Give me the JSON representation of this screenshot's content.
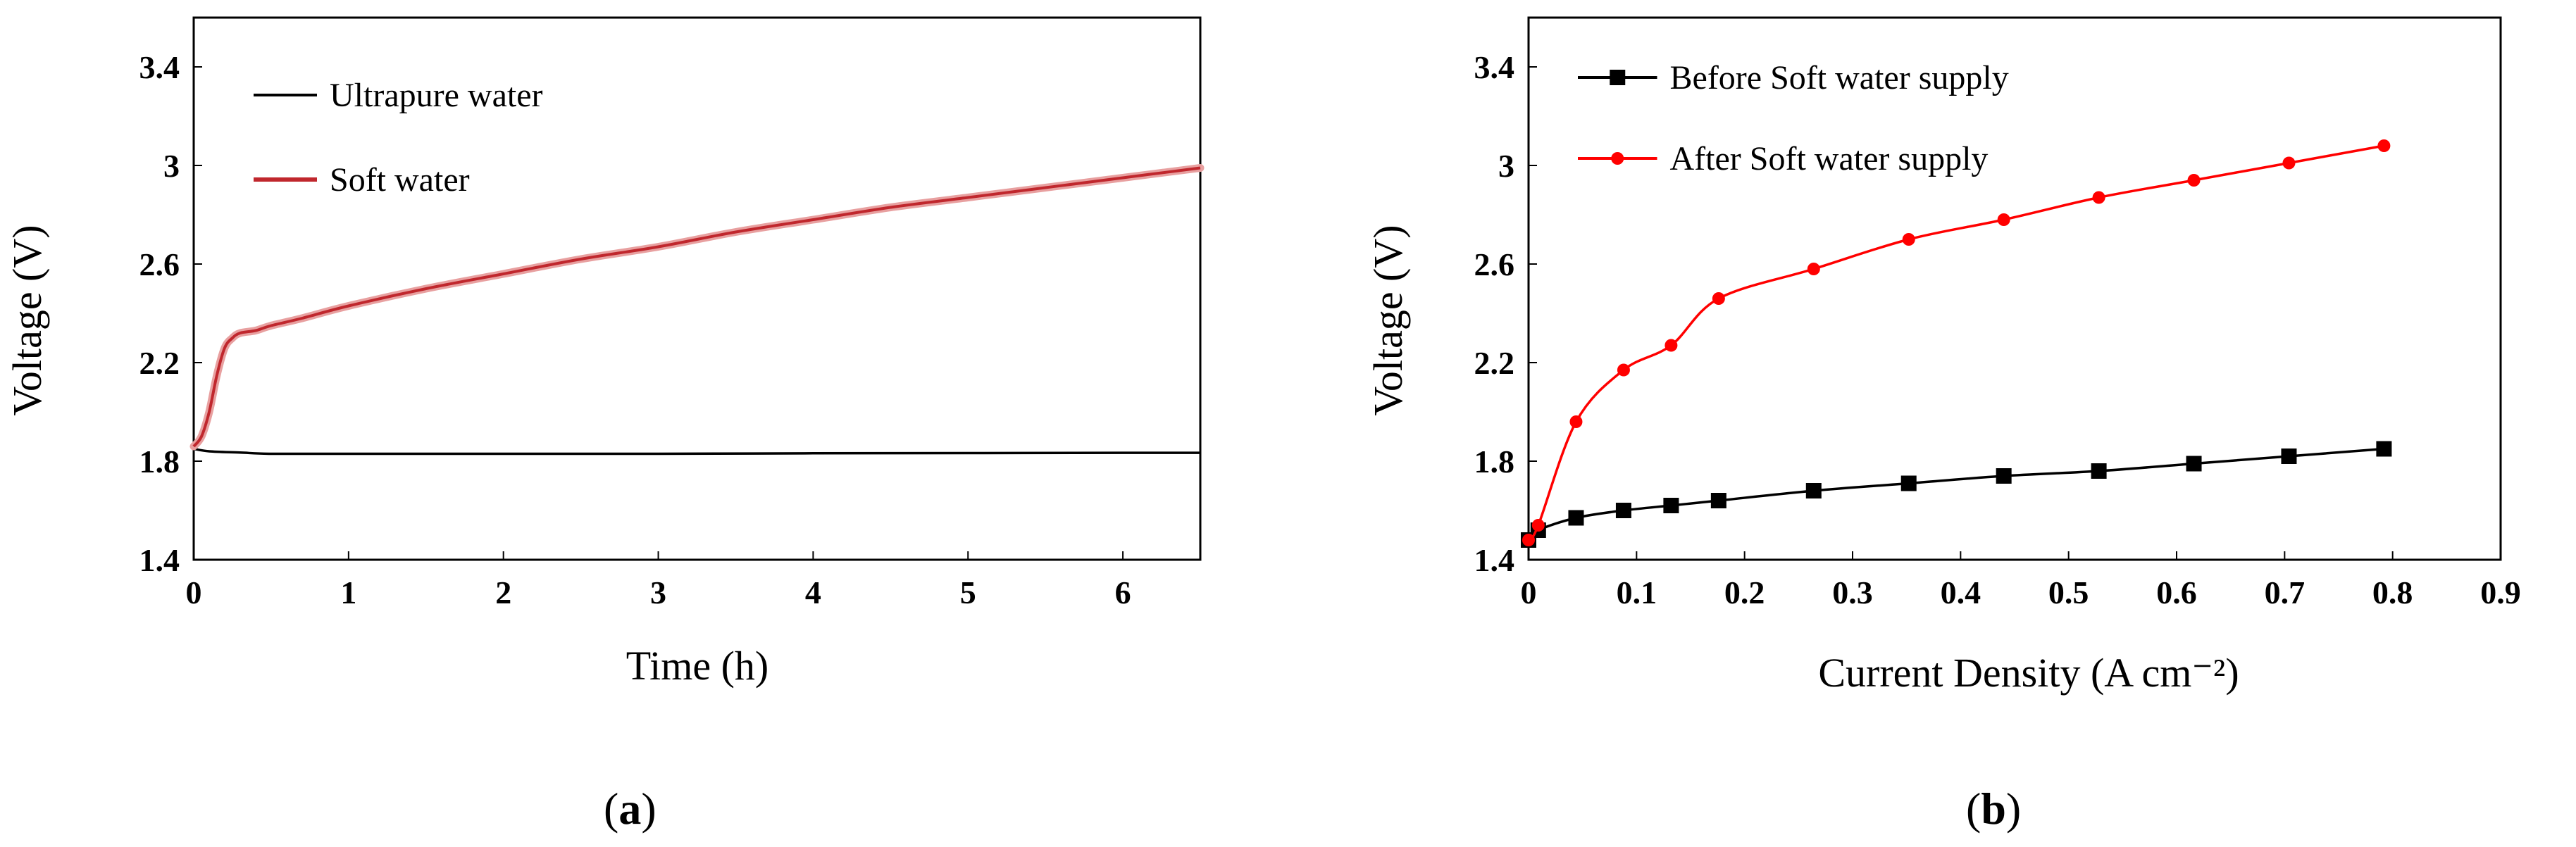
{
  "chart_data": [
    {
      "type": "line",
      "panel_label": "a",
      "title": "",
      "xlabel": "Time (h)",
      "ylabel": "Voltage (V)",
      "xlim": [
        0,
        6.5
      ],
      "ylim": [
        1.4,
        3.6
      ],
      "xticks": [
        0,
        1,
        2,
        3,
        4,
        5,
        6
      ],
      "xtick_labels": [
        "0",
        "1",
        "2",
        "3",
        "4",
        "5",
        "6"
      ],
      "yticks": [
        1.4,
        1.8,
        2.2,
        2.6,
        3.0,
        3.4
      ],
      "ytick_labels": [
        "1.4",
        "1.8",
        "2.2",
        "2.6",
        "3",
        "3.4"
      ],
      "legend_position": "top-left",
      "series": [
        {
          "name": "Ultrapure water",
          "color": "#000000",
          "x": [
            0,
            0.1,
            0.3,
            0.5,
            1,
            2,
            3,
            4,
            5,
            6,
            6.5
          ],
          "y": [
            1.85,
            1.84,
            1.835,
            1.83,
            1.83,
            1.83,
            1.83,
            1.832,
            1.833,
            1.834,
            1.834
          ]
        },
        {
          "name": "Soft water",
          "color": "#c0272d",
          "x": [
            0,
            0.05,
            0.1,
            0.15,
            0.2,
            0.25,
            0.3,
            0.4,
            0.5,
            0.7,
            1.0,
            1.5,
            2.0,
            2.5,
            3.0,
            3.5,
            4.0,
            4.5,
            5.0,
            5.5,
            6.0,
            6.5
          ],
          "y": [
            1.86,
            1.9,
            2.0,
            2.15,
            2.26,
            2.3,
            2.32,
            2.33,
            2.35,
            2.38,
            2.43,
            2.5,
            2.56,
            2.62,
            2.67,
            2.73,
            2.78,
            2.83,
            2.87,
            2.91,
            2.95,
            2.99
          ]
        }
      ]
    },
    {
      "type": "line",
      "panel_label": "b",
      "title": "",
      "xlabel": "Current Density (A cm⁻²)",
      "ylabel": "Voltage (V)",
      "xlim": [
        0,
        0.9
      ],
      "ylim": [
        1.4,
        3.6
      ],
      "xticks": [
        0,
        0.1,
        0.2,
        0.3,
        0.4,
        0.5,
        0.6,
        0.7,
        0.8,
        0.9
      ],
      "xtick_labels": [
        "0",
        "0.1",
        "0.2",
        "0.3",
        "0.4",
        "0.5",
        "0.6",
        "0.7",
        "0.8",
        "0.9"
      ],
      "yticks": [
        1.4,
        1.8,
        2.2,
        2.6,
        3.0,
        3.4
      ],
      "ytick_labels": [
        "1.4",
        "1.8",
        "2.2",
        "2.6",
        "3",
        "3.4"
      ],
      "legend_position": "top-left",
      "series": [
        {
          "name": "Before Soft water supply",
          "color": "#000000",
          "marker": "square",
          "x": [
            0,
            0.009,
            0.044,
            0.088,
            0.132,
            0.176,
            0.264,
            0.352,
            0.44,
            0.528,
            0.616,
            0.704,
            0.792
          ],
          "y": [
            1.48,
            1.52,
            1.57,
            1.6,
            1.62,
            1.64,
            1.68,
            1.71,
            1.74,
            1.76,
            1.79,
            1.82,
            1.85
          ]
        },
        {
          "name": "After Soft water supply",
          "color": "#ff0000",
          "marker": "circle",
          "x": [
            0,
            0.009,
            0.044,
            0.088,
            0.132,
            0.176,
            0.264,
            0.352,
            0.44,
            0.528,
            0.616,
            0.704,
            0.792
          ],
          "y": [
            1.48,
            1.54,
            1.96,
            2.17,
            2.27,
            2.46,
            2.58,
            2.7,
            2.78,
            2.87,
            2.94,
            3.01,
            3.08
          ]
        }
      ]
    }
  ]
}
